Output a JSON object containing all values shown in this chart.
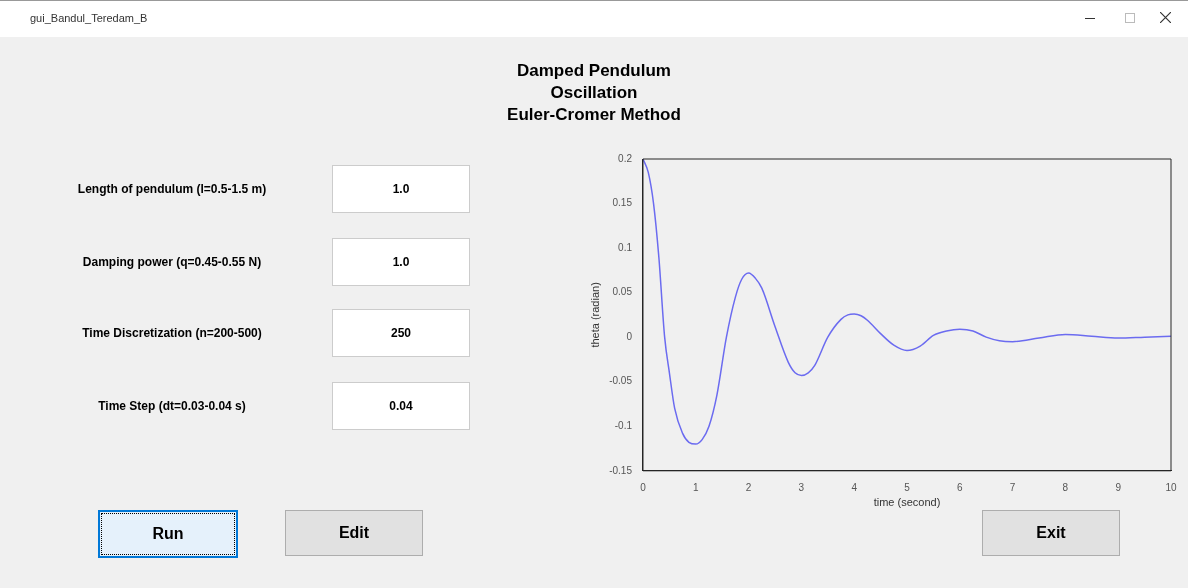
{
  "chart_data": {
    "type": "line",
    "title": "Damped Pendulum\nOscillation\nEuler-Cromer Method",
    "xlabel": "time (second)",
    "ylabel": "theta (radian)",
    "x": [
      0,
      0.1,
      0.2,
      0.3,
      0.41,
      0.5,
      0.6,
      0.75,
      0.87,
      1,
      1.12,
      1.25,
      1.4,
      1.58,
      1.75,
      1.87,
      2,
      2.13,
      2.25,
      2.5,
      2.75,
      2.88,
      3,
      3.13,
      3.25,
      3.5,
      3.75,
      3.88,
      4,
      4.13,
      4.25,
      4.5,
      4.75,
      5,
      5.25,
      5.5,
      5.75,
      6,
      6.25,
      6.5,
      6.75,
      7,
      7.5,
      8,
      8.5,
      9,
      9.5,
      10
    ],
    "series": [
      {
        "color": "#6b6bf0",
        "values": [
          0.2,
          0.185,
          0.15,
          0.09,
          0,
          -0.04,
          -0.08,
          -0.108,
          -0.118,
          -0.12,
          -0.115,
          -0.1,
          -0.065,
          0,
          0.045,
          0.065,
          0.072,
          0.066,
          0.055,
          0.012,
          -0.028,
          -0.04,
          -0.043,
          -0.04,
          -0.032,
          0,
          0.02,
          0.025,
          0.026,
          0.024,
          0.019,
          0.004,
          -0.009,
          -0.015,
          -0.01,
          0.002,
          0.007,
          0.009,
          0.007,
          0,
          -0.004,
          -0.005,
          -0.001,
          0.003,
          0.001,
          -0.001,
          0,
          0.001
        ]
      }
    ],
    "xlim": [
      0,
      10
    ],
    "xticks": [
      0,
      1,
      2,
      3,
      4,
      5,
      6,
      7,
      8,
      9,
      10
    ],
    "ylim": [
      -0.15,
      0.2
    ],
    "yticks": [
      -0.15,
      -0.1,
      -0.05,
      0,
      0.05,
      0.1,
      0.15,
      0.2
    ],
    "marker": "none",
    "line_style": "solid",
    "annotations": [
      "gui_Bandul_Teredam_B",
      "Length of pendulum (l=0.5-1.5 m)",
      "1.0",
      "Damping power (q=0.45-0.55 N)",
      "1.0",
      "Time Discretization (n=200-500)",
      "250",
      "Time Step (dt=0.03-0.04 s)",
      "0.04",
      "Run",
      "Edit",
      "Exit"
    ]
  }
}
